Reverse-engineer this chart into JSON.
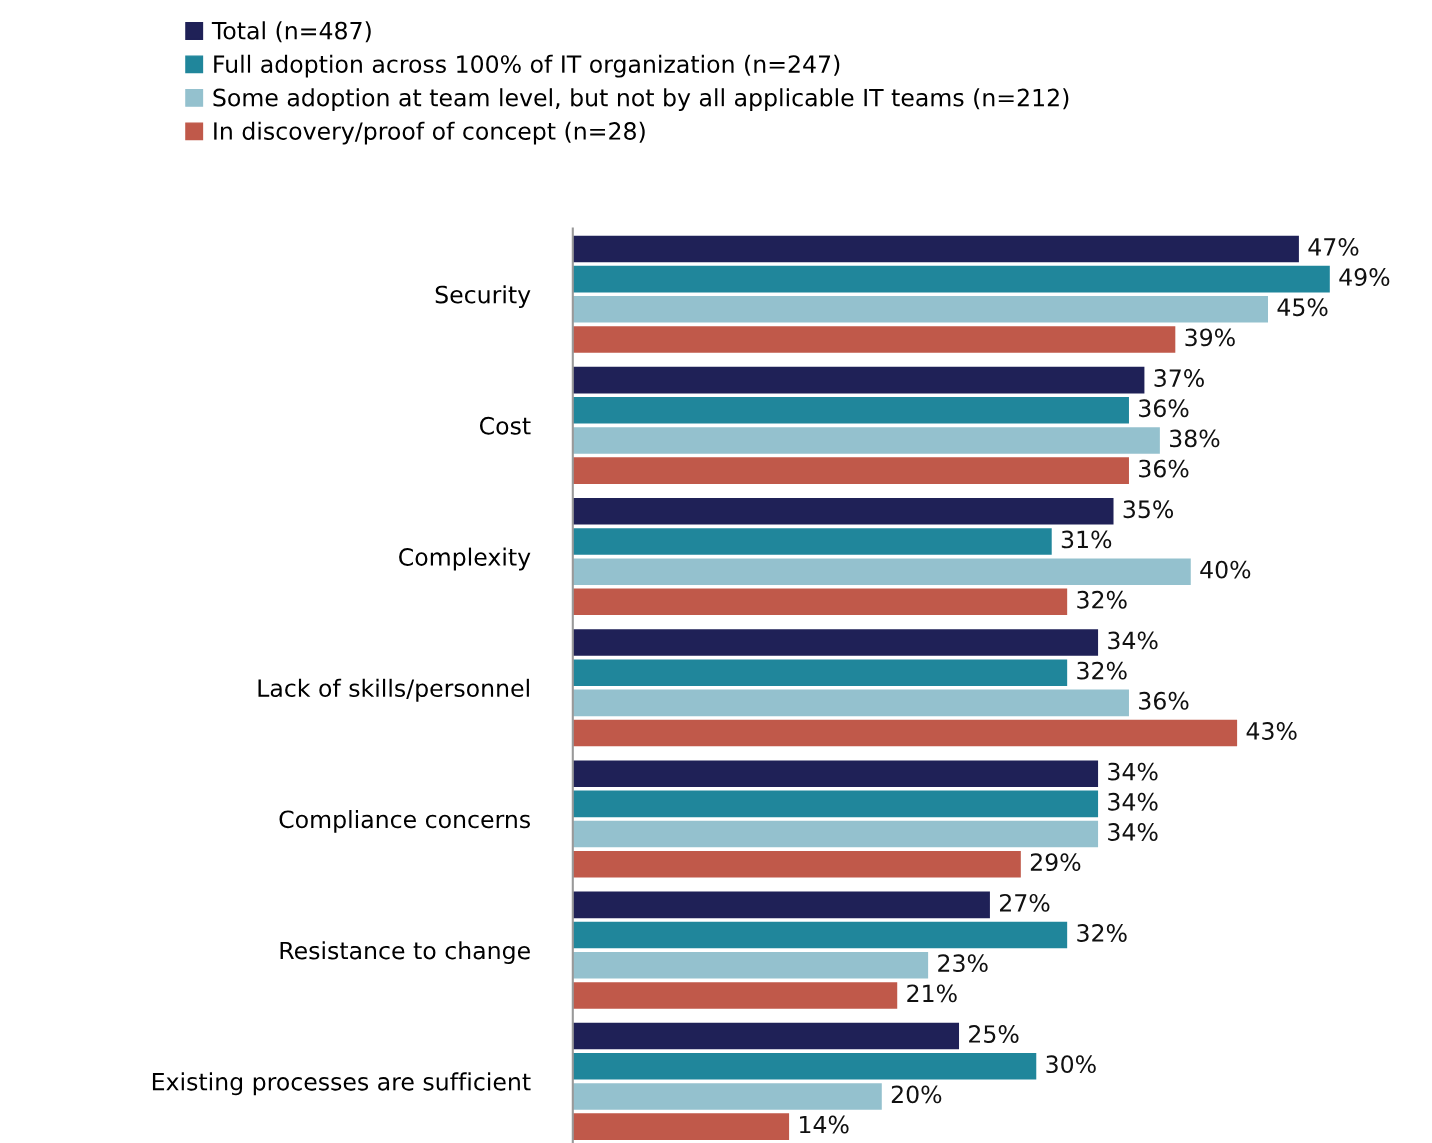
{
  "chart_data": {
    "type": "bar",
    "orientation": "horizontal",
    "legend": "top",
    "grid": false,
    "categories": [
      "Security",
      "Cost",
      "Complexity",
      "Lack of skills/personnel",
      "Compliance concerns",
      "Resistance to change",
      "Existing processes are sufficient"
    ],
    "series": [
      {
        "name": "Total (n=487)",
        "color": "#1f2157",
        "values": [
          47,
          37,
          35,
          34,
          34,
          27,
          25
        ],
        "value_labels": [
          "47%",
          "37%",
          "35%",
          "34%",
          "34%",
          "27%",
          "25%"
        ]
      },
      {
        "name": "Full adoption across 100% of IT organization (n=247)",
        "color": "#20869b",
        "values": [
          49,
          36,
          31,
          32,
          34,
          32,
          30
        ],
        "value_labels": [
          "49%",
          "36%",
          "31%",
          "32%",
          "34%",
          "32%",
          "30%"
        ]
      },
      {
        "name": "Some adoption at team level, but not by all applicable IT teams (n=212)",
        "color": "#94c1ce",
        "values": [
          45,
          38,
          40,
          36,
          34,
          23,
          20
        ],
        "value_labels": [
          "45%",
          "38%",
          "40%",
          "36%",
          "34%",
          "23%",
          "20%"
        ]
      },
      {
        "name": "In discovery/proof of concept (n=28)",
        "color": "#c0594a",
        "values": [
          39,
          36,
          32,
          43,
          29,
          21,
          14
        ],
        "value_labels": [
          "39%",
          "36%",
          "32%",
          "43%",
          "29%",
          "21%",
          "14%"
        ]
      }
    ]
  }
}
